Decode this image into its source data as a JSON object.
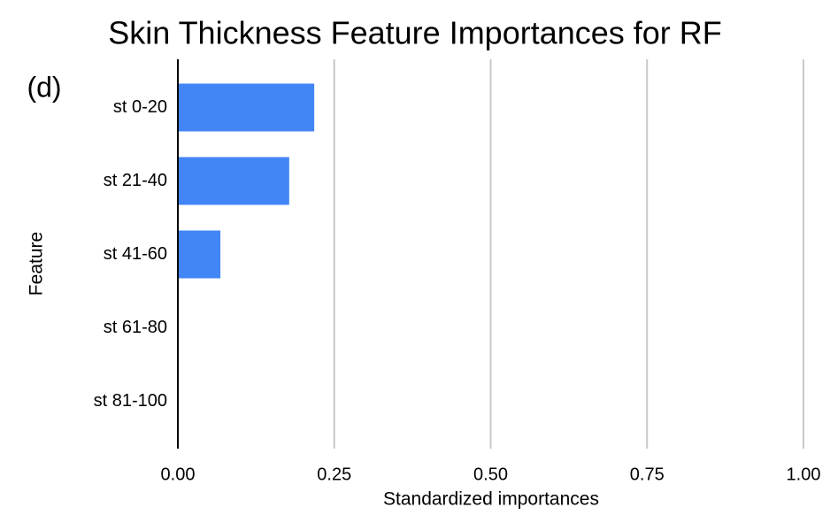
{
  "chart_data": {
    "type": "bar",
    "orientation": "horizontal",
    "title": "Skin Thickness Feature Importances for RF",
    "annotation": "(d)",
    "x_label": "Standardized importances",
    "y_label": "Feature",
    "categories": [
      "st 0-20",
      "st 21-40",
      "st 41-60",
      "st 61-80",
      "st 81-100"
    ],
    "values": [
      0.218,
      0.178,
      0.068,
      0,
      0
    ],
    "color": "#4285f4",
    "xlim": [
      0,
      1
    ],
    "xticks": [
      {
        "value": 0,
        "label": "0.00"
      },
      {
        "value": 0.25,
        "label": "0.25"
      },
      {
        "value": 0.5,
        "label": "0.50"
      },
      {
        "value": 0.75,
        "label": "0.75"
      },
      {
        "value": 1,
        "label": "1.00"
      }
    ],
    "grid": true
  }
}
